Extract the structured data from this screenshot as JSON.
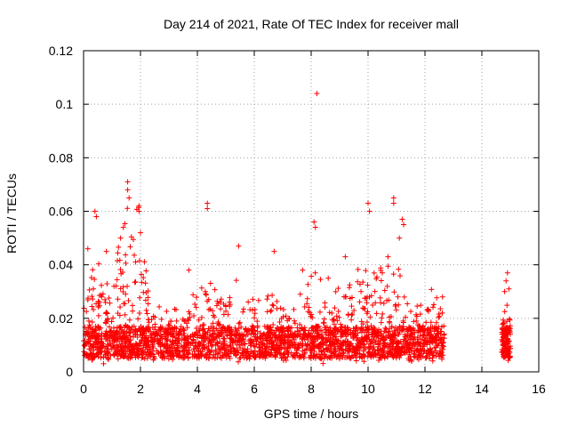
{
  "chart_data": {
    "type": "scatter",
    "title": "Day 214 of 2021, Rate Of TEC Index for receiver mall",
    "xlabel": "GPS time / hours",
    "ylabel": "ROTI / TECUs",
    "xlim": [
      0,
      16
    ],
    "ylim": [
      0,
      0.12
    ],
    "xticks": [
      "0",
      "2",
      "4",
      "6",
      "8",
      "10",
      "12",
      "14",
      "16"
    ],
    "yticks": [
      "0",
      "0.02",
      "0.04",
      "0.06",
      "0.08",
      "0.1",
      "0.12"
    ],
    "grid": true,
    "marker": "+",
    "color": "#ff0000",
    "data_ranges": [
      {
        "x_start": 0.0,
        "x_end": 12.7,
        "typical_y_max": 0.025
      },
      {
        "x_start": 14.7,
        "x_end": 15.0,
        "typical_y_max": 0.02
      }
    ],
    "notable_points": [
      {
        "x": 8.2,
        "y": 0.104
      },
      {
        "x": 1.55,
        "y": 0.071
      },
      {
        "x": 1.55,
        "y": 0.068
      },
      {
        "x": 1.6,
        "y": 0.065
      },
      {
        "x": 10.9,
        "y": 0.065
      },
      {
        "x": 10.9,
        "y": 0.063
      },
      {
        "x": 4.35,
        "y": 0.063
      },
      {
        "x": 4.35,
        "y": 0.061
      },
      {
        "x": 10.0,
        "y": 0.063
      },
      {
        "x": 10.05,
        "y": 0.06
      },
      {
        "x": 0.4,
        "y": 0.06
      },
      {
        "x": 0.45,
        "y": 0.058
      },
      {
        "x": 1.95,
        "y": 0.062
      },
      {
        "x": 1.95,
        "y": 0.06
      },
      {
        "x": 8.1,
        "y": 0.056
      },
      {
        "x": 8.15,
        "y": 0.054
      },
      {
        "x": 11.2,
        "y": 0.057
      },
      {
        "x": 11.25,
        "y": 0.055
      },
      {
        "x": 11.1,
        "y": 0.05
      },
      {
        "x": 14.9,
        "y": 0.037
      },
      {
        "x": 14.85,
        "y": 0.034
      },
      {
        "x": 14.95,
        "y": 0.031
      },
      {
        "x": 14.8,
        "y": 0.03
      },
      {
        "x": 6.7,
        "y": 0.045
      },
      {
        "x": 5.45,
        "y": 0.047
      },
      {
        "x": 0.15,
        "y": 0.046
      },
      {
        "x": 0.8,
        "y": 0.045
      },
      {
        "x": 3.7,
        "y": 0.038
      },
      {
        "x": 7.7,
        "y": 0.038
      },
      {
        "x": 9.2,
        "y": 0.043
      },
      {
        "x": 10.7,
        "y": 0.043
      },
      {
        "x": 10.5,
        "y": 0.037
      },
      {
        "x": 8.6,
        "y": 0.035
      },
      {
        "x": 2.0,
        "y": 0.052
      },
      {
        "x": 1.3,
        "y": 0.05
      }
    ]
  }
}
